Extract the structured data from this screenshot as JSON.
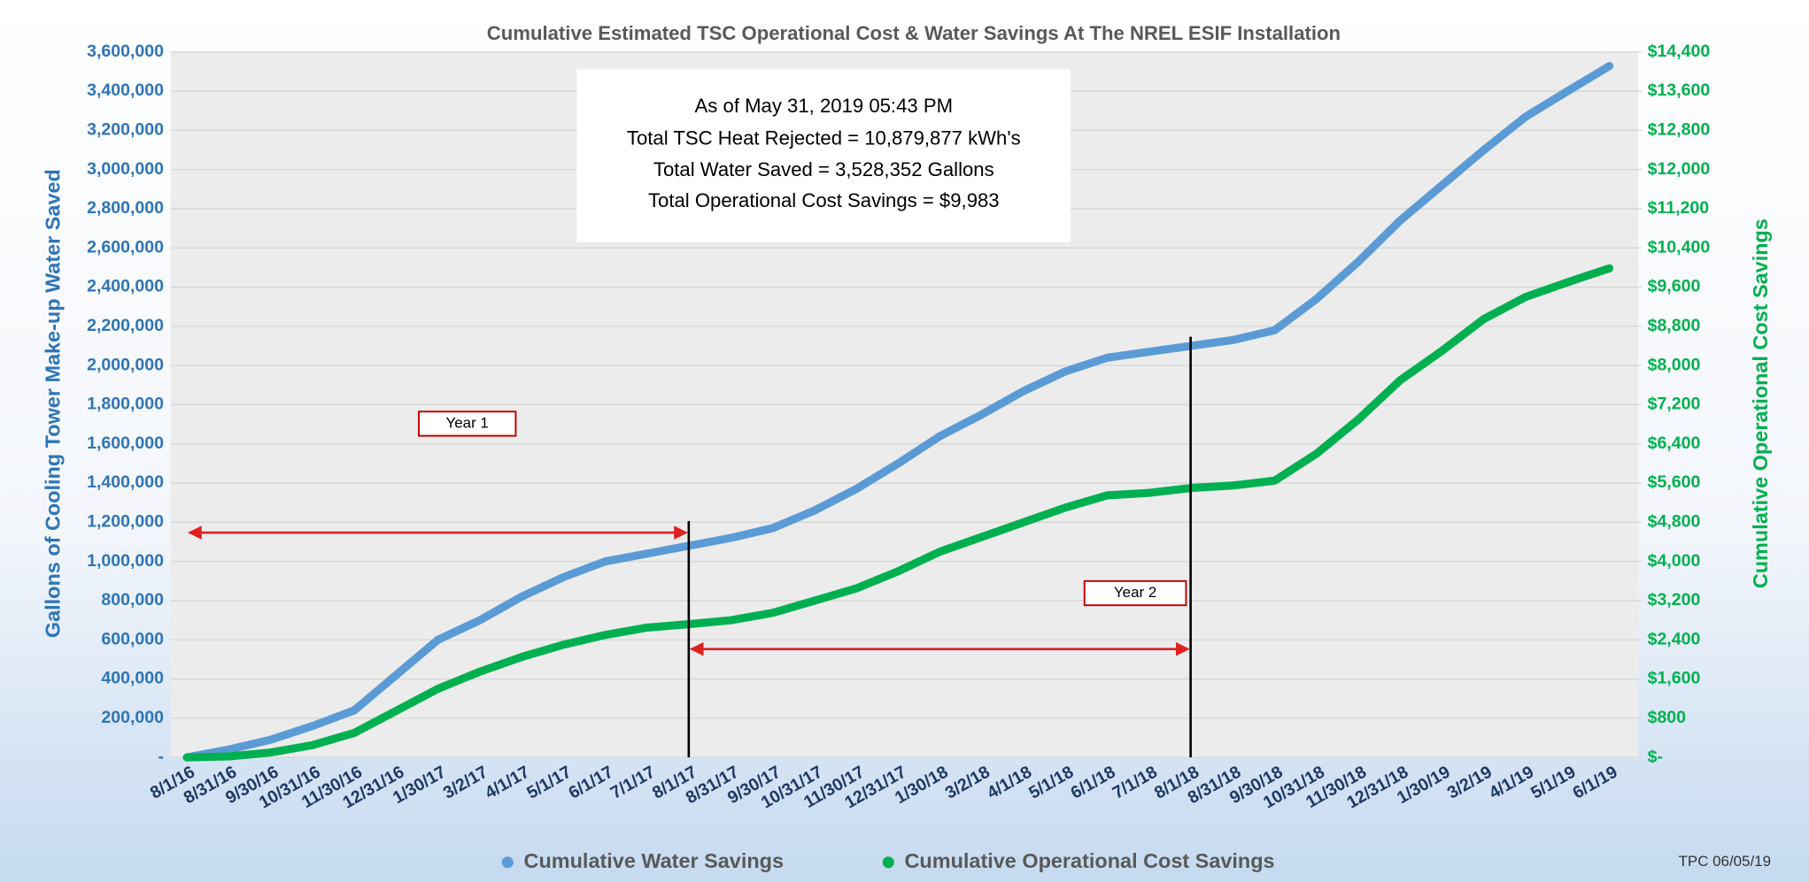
{
  "chart_data": {
    "type": "line",
    "title": "Cumulative Estimated TSC Operational Cost & Water Savings At The NREL ESIF Installation",
    "ylabel": "Gallons of Cooling Tower Make-up Water Saved",
    "y2label": "Cumulative Operational Cost Savings",
    "categories": [
      "8/1/16",
      "8/31/16",
      "9/30/16",
      "10/31/16",
      "11/30/16",
      "12/31/16",
      "1/30/17",
      "3/2/17",
      "4/1/17",
      "5/1/17",
      "6/1/17",
      "7/1/17",
      "8/1/17",
      "8/31/17",
      "9/30/17",
      "10/31/17",
      "11/30/17",
      "12/31/17",
      "1/30/18",
      "3/2/18",
      "4/1/18",
      "5/1/18",
      "6/1/18",
      "7/1/18",
      "8/1/18",
      "8/31/18",
      "9/30/18",
      "10/31/18",
      "11/30/18",
      "12/31/18",
      "1/30/19",
      "3/2/19",
      "4/1/19",
      "5/1/19",
      "6/1/19"
    ],
    "series": [
      {
        "name": "Cumulative Water Savings",
        "color": "#5b9bd5",
        "values": [
          0,
          40000,
          90000,
          160000,
          240000,
          420000,
          600000,
          700000,
          820000,
          920000,
          1000000,
          1040000,
          1080000,
          1120000,
          1170000,
          1260000,
          1370000,
          1500000,
          1640000,
          1750000,
          1870000,
          1970000,
          2040000,
          2070000,
          2100000,
          2130000,
          2180000,
          2340000,
          2530000,
          2740000,
          2920000,
          3100000,
          3270000,
          3400000,
          3528352
        ]
      },
      {
        "name": "Cumulative Operational Cost Savings",
        "color": "#00b050",
        "axis": "y2",
        "values": [
          0,
          20,
          100,
          250,
          500,
          950,
          1400,
          1750,
          2050,
          2300,
          2500,
          2650,
          2720,
          2800,
          2950,
          3200,
          3450,
          3800,
          4200,
          4500,
          4800,
          5100,
          5350,
          5400,
          5500,
          5550,
          5650,
          6200,
          6900,
          7700,
          8300,
          8950,
          9400,
          9700,
          9983
        ]
      }
    ],
    "ylim": [
      0,
      3600000
    ],
    "yticks": [
      {
        "value": 0,
        "label": "-"
      },
      {
        "value": 200000,
        "label": "200,000"
      },
      {
        "value": 400000,
        "label": "400,000"
      },
      {
        "value": 600000,
        "label": "600,000"
      },
      {
        "value": 800000,
        "label": "800,000"
      },
      {
        "value": 1000000,
        "label": "1,000,000"
      },
      {
        "value": 1200000,
        "label": "1,200,000"
      },
      {
        "value": 1400000,
        "label": "1,400,000"
      },
      {
        "value": 1600000,
        "label": "1,600,000"
      },
      {
        "value": 1800000,
        "label": "1,800,000"
      },
      {
        "value": 2000000,
        "label": "2,000,000"
      },
      {
        "value": 2200000,
        "label": "2,200,000"
      },
      {
        "value": 2400000,
        "label": "2,400,000"
      },
      {
        "value": 2600000,
        "label": "2,600,000"
      },
      {
        "value": 2800000,
        "label": "2,800,000"
      },
      {
        "value": 3000000,
        "label": "3,000,000"
      },
      {
        "value": 3200000,
        "label": "3,200,000"
      },
      {
        "value": 3400000,
        "label": "3,400,000"
      },
      {
        "value": 3600000,
        "label": "3,600,000"
      }
    ],
    "y2lim": [
      0,
      14400
    ],
    "y2ticks": [
      {
        "value": 0,
        "label": "$-"
      },
      {
        "value": 800,
        "label": "$800"
      },
      {
        "value": 1600,
        "label": "$1,600"
      },
      {
        "value": 2400,
        "label": "$2,400"
      },
      {
        "value": 3200,
        "label": "$3,200"
      },
      {
        "value": 4000,
        "label": "$4,000"
      },
      {
        "value": 4800,
        "label": "$4,800"
      },
      {
        "value": 5600,
        "label": "$5,600"
      },
      {
        "value": 6400,
        "label": "$6,400"
      },
      {
        "value": 7200,
        "label": "$7,200"
      },
      {
        "value": 8000,
        "label": "$8,000"
      },
      {
        "value": 8800,
        "label": "$8,800"
      },
      {
        "value": 9600,
        "label": "$9,600"
      },
      {
        "value": 10400,
        "label": "$10,400"
      },
      {
        "value": 11200,
        "label": "$11,200"
      },
      {
        "value": 12000,
        "label": "$12,000"
      },
      {
        "value": 12800,
        "label": "$12,800"
      },
      {
        "value": 13600,
        "label": "$13,600"
      },
      {
        "value": 14400,
        "label": "$14,400"
      }
    ],
    "grid": true,
    "legend": "bottom",
    "annotations": [
      "As of May 31, 2019 05:43 PM",
      "Total TSC Heat Rejected = 10,879,877 kWh's",
      "Total Water Saved = 3,528,352 Gallons",
      "Total Operational Cost Savings = $9,983",
      "Year 1",
      "Year 2"
    ],
    "footer": "TPC 06/05/19"
  }
}
